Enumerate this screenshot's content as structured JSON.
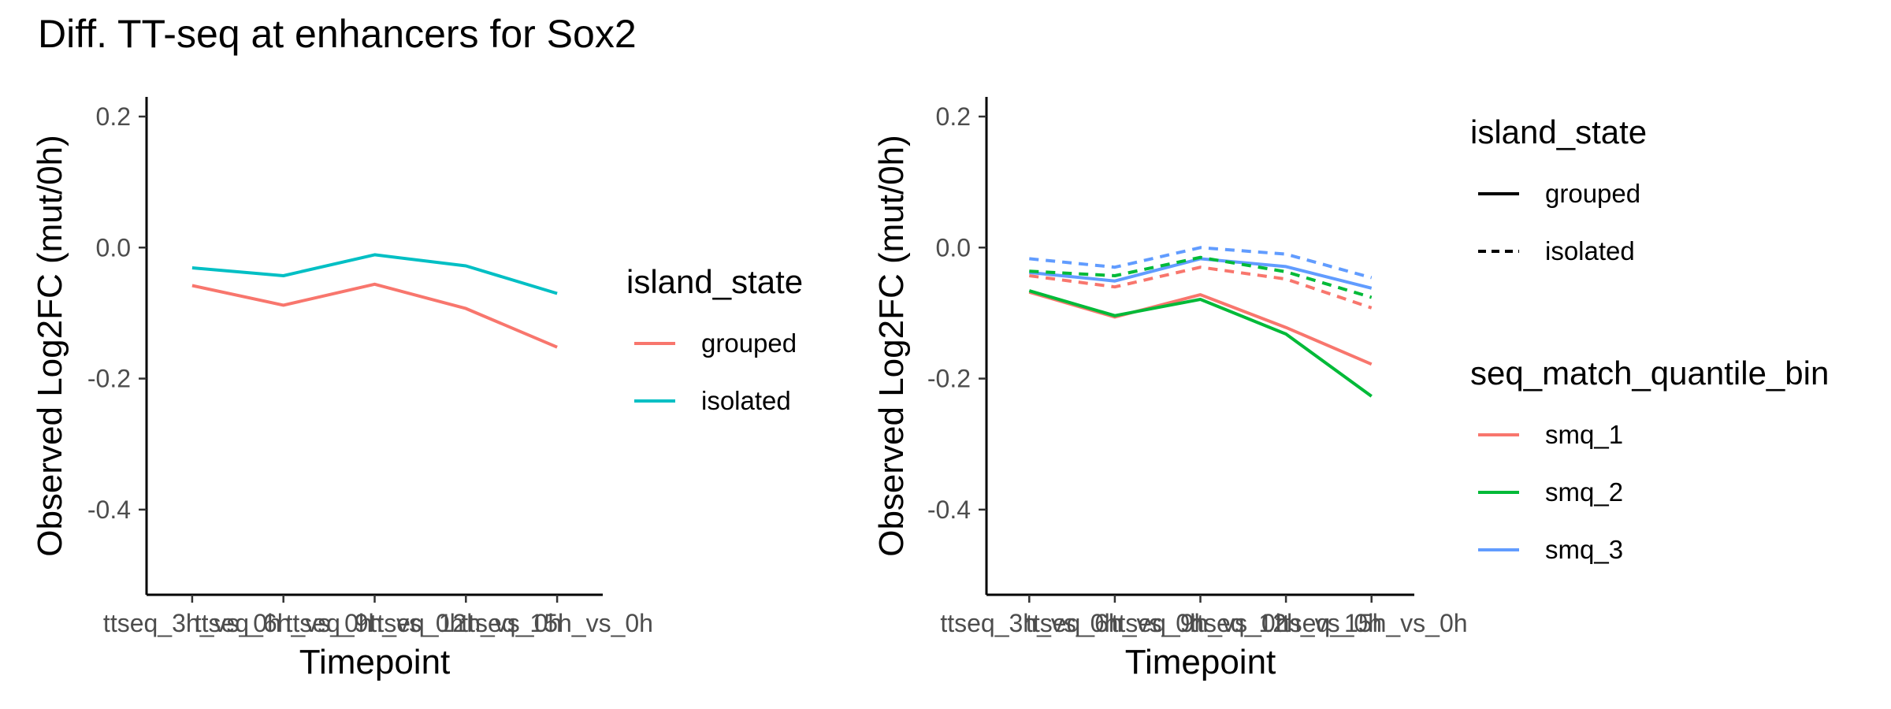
{
  "figure": {
    "title": "Diff. TT-seq at enhancers for Sox2"
  },
  "chart_data": [
    {
      "type": "line",
      "xlabel": "Timepoint",
      "ylabel": "Observed Log2FC (mut/0h)",
      "categories": [
        "ttseq_3h_vs_0h",
        "ttseq_6h_vs_0h",
        "ttseq_9h_vs_0h",
        "ttseq_12h_vs_0h",
        "ttseq_15h_vs_0h"
      ],
      "ylim": [
        -0.53,
        0.23
      ],
      "yticks": [
        0.2,
        0.0,
        -0.2,
        -0.4
      ],
      "ytick_labels": [
        "0.2",
        "0.0",
        "-0.2",
        "-0.4"
      ],
      "grid": false,
      "legend_position": "right",
      "legends": [
        {
          "title": "island_state",
          "entries": [
            {
              "label": "grouped",
              "color": "#F8766D",
              "dash": "solid"
            },
            {
              "label": "isolated",
              "color": "#00BFC4",
              "dash": "solid"
            }
          ]
        }
      ],
      "series": [
        {
          "island_state": "grouped",
          "color": "#F8766D",
          "dash": "solid",
          "values": [
            -0.058,
            -0.088,
            -0.056,
            -0.093,
            -0.152
          ]
        },
        {
          "island_state": "isolated",
          "color": "#00BFC4",
          "dash": "solid",
          "values": [
            -0.031,
            -0.043,
            -0.011,
            -0.028,
            -0.07
          ]
        }
      ]
    },
    {
      "type": "line",
      "xlabel": "Timepoint",
      "ylabel": "Observed Log2FC (mut/0h)",
      "categories": [
        "ttseq_3h_vs_0h",
        "ttseq_6h_vs_0h",
        "ttseq_9h_vs_0h",
        "ttseq_12h_vs_0h",
        "ttseq_15h_vs_0h"
      ],
      "ylim": [
        -0.53,
        0.23
      ],
      "yticks": [
        0.2,
        0.0,
        -0.2,
        -0.4
      ],
      "ytick_labels": [
        "0.2",
        "0.0",
        "-0.2",
        "-0.4"
      ],
      "grid": false,
      "legend_position": "right",
      "legends": [
        {
          "title": "island_state",
          "entries": [
            {
              "label": "grouped",
              "color": "#000000",
              "dash": "solid"
            },
            {
              "label": "isolated",
              "color": "#000000",
              "dash": "dashed"
            }
          ]
        },
        {
          "title": "seq_match_quantile_bin",
          "entries": [
            {
              "label": "smq_1",
              "color": "#F8766D",
              "dash": "solid"
            },
            {
              "label": "smq_2",
              "color": "#00BA38",
              "dash": "solid"
            },
            {
              "label": "smq_3",
              "color": "#619CFF",
              "dash": "solid"
            }
          ]
        }
      ],
      "series": [
        {
          "island_state": "grouped",
          "seq_match_quantile_bin": "smq_1",
          "color": "#F8766D",
          "dash": "solid",
          "values": [
            -0.068,
            -0.106,
            -0.072,
            -0.122,
            -0.178
          ]
        },
        {
          "island_state": "grouped",
          "seq_match_quantile_bin": "smq_2",
          "color": "#00BA38",
          "dash": "solid",
          "values": [
            -0.066,
            -0.104,
            -0.079,
            -0.132,
            -0.227
          ]
        },
        {
          "island_state": "grouped",
          "seq_match_quantile_bin": "smq_3",
          "color": "#619CFF",
          "dash": "solid",
          "values": [
            -0.038,
            -0.051,
            -0.017,
            -0.029,
            -0.062
          ]
        },
        {
          "island_state": "isolated",
          "seq_match_quantile_bin": "smq_1",
          "color": "#F8766D",
          "dash": "dashed",
          "values": [
            -0.043,
            -0.06,
            -0.03,
            -0.048,
            -0.092
          ]
        },
        {
          "island_state": "isolated",
          "seq_match_quantile_bin": "smq_2",
          "color": "#00BA38",
          "dash": "dashed",
          "values": [
            -0.036,
            -0.043,
            -0.015,
            -0.037,
            -0.076
          ]
        },
        {
          "island_state": "isolated",
          "seq_match_quantile_bin": "smq_3",
          "color": "#619CFF",
          "dash": "dashed",
          "values": [
            -0.017,
            -0.03,
            0.0,
            -0.01,
            -0.046
          ]
        }
      ]
    }
  ]
}
